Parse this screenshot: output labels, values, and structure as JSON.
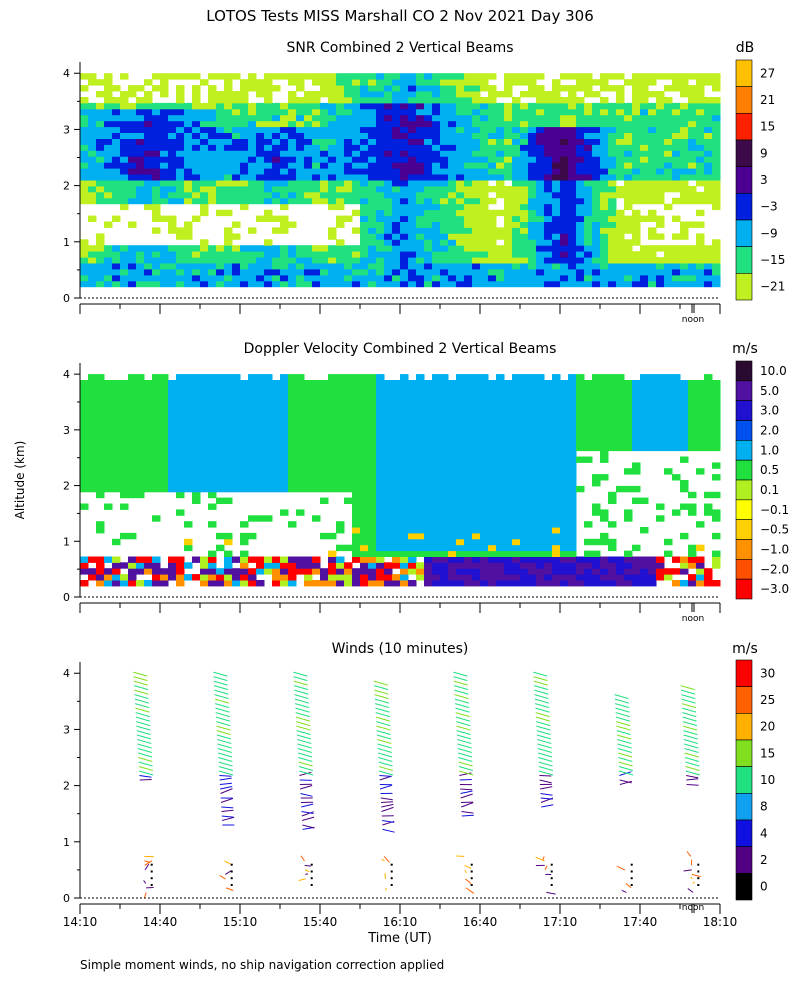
{
  "figure_title": "LOTOS Tests MISS Marshall CO    2 Nov 2021 Day 306",
  "y_axis_label": "Altitude (km)",
  "x_axis_label": "Time (UT)",
  "footnote": "Simple moment winds, no ship navigation correction applied",
  "noon_label": "noon",
  "x_ticks": [
    "14:10",
    "14:40",
    "15:10",
    "15:40",
    "16:10",
    "16:40",
    "17:10",
    "17:40",
    "18:10"
  ],
  "y_ticks": [
    "0",
    "1",
    "2",
    "3",
    "4"
  ],
  "chart_data": [
    {
      "type": "heatmap",
      "title": "SNR Combined 2 Vertical Beams",
      "unit": "dB",
      "ylim": [
        0,
        4
      ],
      "colorbar_labels": [
        "27",
        "21",
        "15",
        "9",
        "3",
        "−3",
        "−9",
        "−15",
        "−21"
      ],
      "colorbar_colors": [
        "#FFC000",
        "#FF8000",
        "#FF2000",
        "#3C0A48",
        "#4A0090",
        "#0020E0",
        "#00B0F0",
        "#20E080",
        "#C0F020"
      ],
      "colorbar_values": [
        27,
        21,
        15,
        9,
        3,
        -3,
        -9,
        -15,
        -21
      ]
    },
    {
      "type": "heatmap",
      "title": "Doppler Velocity Combined 2 Vertical Beams",
      "unit": "m/s",
      "ylim": [
        0,
        4
      ],
      "colorbar_labels": [
        "10.0",
        "5.0",
        "3.0",
        "2.0",
        "1.0",
        "0.5",
        "0.1",
        "−0.1",
        "−0.5",
        "−1.0",
        "−2.0",
        "−3.0"
      ],
      "colorbar_colors": [
        "#2A0A30",
        "#5010A0",
        "#2010D0",
        "#0050F0",
        "#00B0F0",
        "#20E040",
        "#B0F020",
        "#FFFF00",
        "#FFD000",
        "#FF9000",
        "#FF5000",
        "#FF0000"
      ],
      "colorbar_values": [
        10,
        5,
        3,
        2,
        1,
        0.5,
        0.1,
        -0.1,
        -0.5,
        -1,
        -2,
        -3
      ]
    },
    {
      "type": "scatter",
      "title": "Winds (10 minutes)",
      "unit": "m/s",
      "ylim": [
        0,
        4
      ],
      "colorbar_labels": [
        "30",
        "25",
        "20",
        "15",
        "10",
        "8",
        "4",
        "2",
        "0"
      ],
      "colorbar_colors": [
        "#FF0000",
        "#FF6000",
        "#FFB000",
        "#80E020",
        "#20E080",
        "#10A0F0",
        "#1010E0",
        "#500080",
        "#000000"
      ],
      "colorbar_values": [
        30,
        25,
        20,
        15,
        10,
        8,
        4,
        2,
        0
      ],
      "profile_times": [
        "14:35",
        "15:05",
        "15:35",
        "16:05",
        "16:35",
        "17:05",
        "17:35",
        "18:00"
      ]
    }
  ]
}
